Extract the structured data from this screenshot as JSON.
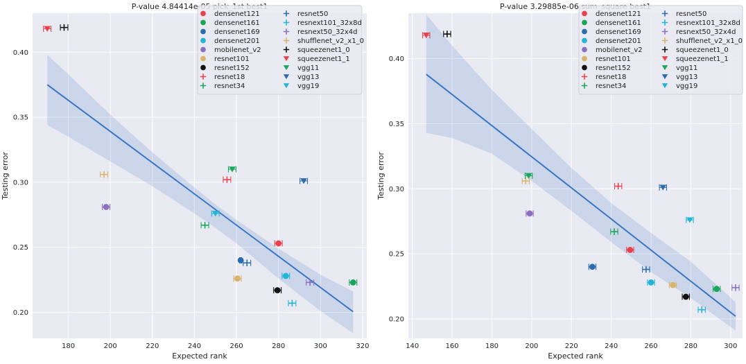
{
  "chart_data": [
    {
      "type": "scatter",
      "title": "P-value 4.84414e-05 pick_1st best1",
      "xlabel": "Expected rank",
      "ylabel": "Testing error",
      "xlim": [
        163,
        322
      ],
      "ylim": [
        0.18,
        0.43
      ],
      "xticks": [
        "180",
        "200",
        "220",
        "240",
        "260",
        "280",
        "300",
        "320"
      ],
      "yticks": [
        "0.20",
        "0.25",
        "0.30",
        "0.35",
        "0.40"
      ],
      "grid": true,
      "legend_position": "top-right",
      "fit_line": {
        "x": [
          170,
          315.5
        ],
        "y": [
          0.375,
          0.2005
        ]
      },
      "ci_band": {
        "x": [
          170,
          180,
          200,
          220,
          240,
          250,
          260,
          280,
          300,
          315.5
        ],
        "upper": [
          0.398,
          0.383,
          0.352,
          0.323,
          0.296,
          0.283,
          0.271,
          0.249,
          0.229,
          0.216
        ],
        "lower": [
          0.344,
          0.335,
          0.316,
          0.297,
          0.276,
          0.265,
          0.253,
          0.226,
          0.201,
          0.184
        ]
      },
      "points": [
        {
          "name": "densenet121",
          "x": 280,
          "y": 0.253,
          "xerr": 1.8
        },
        {
          "name": "densenet161",
          "x": 315.5,
          "y": 0.223,
          "xerr": 1.8
        },
        {
          "name": "densenet169",
          "x": 262,
          "y": 0.24,
          "xerr": 0.5
        },
        {
          "name": "densenet201",
          "x": 283.5,
          "y": 0.228,
          "xerr": 1.8
        },
        {
          "name": "mobilenet_v2",
          "x": 198,
          "y": 0.281,
          "xerr": 1.8
        },
        {
          "name": "resnet101",
          "x": 260.5,
          "y": 0.226,
          "xerr": 1.8
        },
        {
          "name": "resnet152",
          "x": 279.5,
          "y": 0.217,
          "xerr": 1.8
        },
        {
          "name": "resnet18",
          "x": 255.5,
          "y": 0.302,
          "xerr": 1.8
        },
        {
          "name": "resnet34",
          "x": 245,
          "y": 0.267,
          "xerr": 1.8
        },
        {
          "name": "resnet50",
          "x": 265,
          "y": 0.238,
          "xerr": 1.8
        },
        {
          "name": "resnext101_32x8d",
          "x": 286.5,
          "y": 0.207,
          "xerr": 1.8
        },
        {
          "name": "resnext50_32x4d",
          "x": 295,
          "y": 0.223,
          "xerr": 1.8
        },
        {
          "name": "shufflenet_v2_x1_0",
          "x": 197,
          "y": 0.306,
          "xerr": 1.8
        },
        {
          "name": "squeezenet1_0",
          "x": 178,
          "y": 0.419,
          "xerr": 1.8
        },
        {
          "name": "squeezenet1_1",
          "x": 170,
          "y": 0.418,
          "xerr": 1.8
        },
        {
          "name": "vgg11",
          "x": 258,
          "y": 0.31,
          "xerr": 1.8
        },
        {
          "name": "vgg13",
          "x": 292,
          "y": 0.301,
          "xerr": 1.8
        },
        {
          "name": "vgg19",
          "x": 250,
          "y": 0.276,
          "xerr": 1.8
        }
      ]
    },
    {
      "type": "scatter",
      "title": "P-value 3.29885e-06 sum_square best1",
      "xlabel": "Expected rank",
      "ylabel": "Testing error",
      "xlim": [
        138,
        306
      ],
      "ylim": [
        0.185,
        0.435
      ],
      "xticks": [
        "140",
        "160",
        "180",
        "200",
        "220",
        "240",
        "260",
        "280",
        "300"
      ],
      "yticks": [
        "0.20",
        "0.25",
        "0.30",
        "0.35",
        "0.40"
      ],
      "grid": true,
      "legend_position": "top-right",
      "fit_line": {
        "x": [
          147,
          302.5
        ],
        "y": [
          0.388,
          0.202
        ]
      },
      "ci_band": {
        "x": [
          147,
          160,
          180,
          200,
          220,
          240,
          260,
          280,
          302.5
        ],
        "upper": [
          0.434,
          0.41,
          0.376,
          0.346,
          0.316,
          0.289,
          0.266,
          0.244,
          0.213
        ],
        "lower": [
          0.343,
          0.339,
          0.327,
          0.306,
          0.283,
          0.259,
          0.236,
          0.216,
          0.191
        ]
      },
      "points": [
        {
          "name": "densenet121",
          "x": 249.5,
          "y": 0.253,
          "xerr": 1.8
        },
        {
          "name": "densenet161",
          "x": 293,
          "y": 0.223,
          "xerr": 1.8
        },
        {
          "name": "densenet169",
          "x": 230.5,
          "y": 0.24,
          "xerr": 1.8
        },
        {
          "name": "densenet201",
          "x": 260,
          "y": 0.228,
          "xerr": 1.8
        },
        {
          "name": "mobilenet_v2",
          "x": 199,
          "y": 0.281,
          "xerr": 1.8
        },
        {
          "name": "resnet101",
          "x": 271,
          "y": 0.226,
          "xerr": 1.8
        },
        {
          "name": "resnet152",
          "x": 277.5,
          "y": 0.217,
          "xerr": 1.8
        },
        {
          "name": "resnet18",
          "x": 243.5,
          "y": 0.302,
          "xerr": 1.8
        },
        {
          "name": "resnet34",
          "x": 241.5,
          "y": 0.267,
          "xerr": 1.8
        },
        {
          "name": "resnet50",
          "x": 257.5,
          "y": 0.238,
          "xerr": 1.8
        },
        {
          "name": "resnext101_32x8d",
          "x": 285.5,
          "y": 0.207,
          "xerr": 1.8
        },
        {
          "name": "resnext50_32x4d",
          "x": 302.5,
          "y": 0.224,
          "xerr": 1.8
        },
        {
          "name": "shufflenet_v2_x1_0",
          "x": 197,
          "y": 0.306,
          "xerr": 1.8
        },
        {
          "name": "squeezenet1_0",
          "x": 157.5,
          "y": 0.419,
          "xerr": 1.8
        },
        {
          "name": "squeezenet1_1",
          "x": 147,
          "y": 0.418,
          "xerr": 1.8
        },
        {
          "name": "vgg11",
          "x": 198.5,
          "y": 0.31,
          "xerr": 1.8
        },
        {
          "name": "vgg13",
          "x": 266,
          "y": 0.301,
          "xerr": 1.8
        },
        {
          "name": "vgg19",
          "x": 279.5,
          "y": 0.276,
          "xerr": 1.8
        }
      ]
    }
  ],
  "legend": [
    {
      "name": "densenet121",
      "color": "#e8434d",
      "marker": "circle"
    },
    {
      "name": "densenet161",
      "color": "#1aa65c",
      "marker": "circle"
    },
    {
      "name": "densenet169",
      "color": "#2b6cb0",
      "marker": "circle"
    },
    {
      "name": "densenet201",
      "color": "#22b5d6",
      "marker": "circle"
    },
    {
      "name": "mobilenet_v2",
      "color": "#8c6fc2",
      "marker": "circle"
    },
    {
      "name": "resnet101",
      "color": "#d8b56a",
      "marker": "circle"
    },
    {
      "name": "resnet152",
      "color": "#111111",
      "marker": "circle"
    },
    {
      "name": "resnet18",
      "color": "#e8434d",
      "marker": "plus"
    },
    {
      "name": "resnet34",
      "color": "#1aa65c",
      "marker": "plus"
    },
    {
      "name": "resnet50",
      "color": "#2b6cb0",
      "marker": "plus"
    },
    {
      "name": "resnext101_32x8d",
      "color": "#22b5d6",
      "marker": "plus"
    },
    {
      "name": "resnext50_32x4d",
      "color": "#8c6fc2",
      "marker": "plus"
    },
    {
      "name": "shufflenet_v2_x1_0",
      "color": "#d8b56a",
      "marker": "plus"
    },
    {
      "name": "squeezenet1_0",
      "color": "#111111",
      "marker": "plus"
    },
    {
      "name": "squeezenet1_1",
      "color": "#e8434d",
      "marker": "triangle"
    },
    {
      "name": "vgg11",
      "color": "#1aa65c",
      "marker": "triangle"
    },
    {
      "name": "vgg13",
      "color": "#2b6cb0",
      "marker": "triangle"
    },
    {
      "name": "vgg19",
      "color": "#22b5d6",
      "marker": "triangle"
    }
  ],
  "colors": {
    "plot_bg": "#eaeaf2",
    "grid": "#ffffff",
    "fit": "#3a75c4",
    "band": "#3a75c4"
  }
}
